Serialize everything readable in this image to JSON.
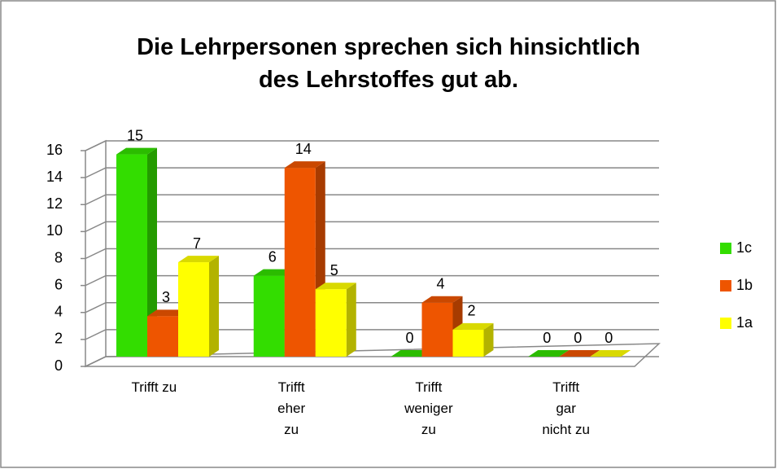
{
  "chart_data": {
    "type": "bar3d",
    "title": "Die Lehrpersonen sprechen sich hinsichtlich\ndes Lehrstoffes gut ab.",
    "categories": [
      "Trifft zu",
      "Trifft\neher\nzu",
      "Trifft\nweniger\nzu",
      "Trifft\ngar\nnicht zu"
    ],
    "series": [
      {
        "name": "1c",
        "color": "#33dd00",
        "values": [
          15,
          6,
          0,
          0
        ]
      },
      {
        "name": "1b",
        "color": "#ee5500",
        "values": [
          3,
          14,
          4,
          0
        ]
      },
      {
        "name": "1a",
        "color": "#ffff00",
        "values": [
          7,
          5,
          2,
          0
        ]
      }
    ],
    "ylim": [
      0,
      16
    ],
    "yticks": [
      0,
      2,
      4,
      6,
      8,
      10,
      12,
      14,
      16
    ],
    "grid": true,
    "legend": "right"
  }
}
